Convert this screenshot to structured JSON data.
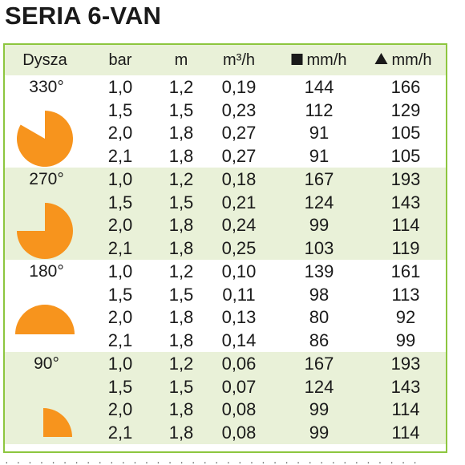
{
  "title": "SERIA 6-VAN",
  "headers": {
    "nozzle": "Dysza",
    "bar": "bar",
    "m": "m",
    "m3h": "m³/h",
    "square_mmh": "mm/h",
    "triangle_mmh": "mm/h"
  },
  "groups": [
    {
      "angle": "330°",
      "rows": [
        [
          "1,0",
          "1,2",
          "0,19",
          "144",
          "166"
        ],
        [
          "1,5",
          "1,5",
          "0,23",
          "112",
          "129"
        ],
        [
          "2,0",
          "1,8",
          "0,27",
          "91",
          "105"
        ],
        [
          "2,1",
          "1,8",
          "0,27",
          "91",
          "105"
        ]
      ]
    },
    {
      "angle": "270°",
      "rows": [
        [
          "1,0",
          "1,2",
          "0,18",
          "167",
          "193"
        ],
        [
          "1,5",
          "1,5",
          "0,21",
          "124",
          "143"
        ],
        [
          "2,0",
          "1,8",
          "0,24",
          "99",
          "114"
        ],
        [
          "2,1",
          "1,8",
          "0,25",
          "103",
          "119"
        ]
      ]
    },
    {
      "angle": "180°",
      "rows": [
        [
          "1,0",
          "1,2",
          "0,10",
          "139",
          "161"
        ],
        [
          "1,5",
          "1,5",
          "0,11",
          "98",
          "113"
        ],
        [
          "2,0",
          "1,8",
          "0,13",
          "80",
          "92"
        ],
        [
          "2,1",
          "1,8",
          "0,14",
          "86",
          "99"
        ]
      ]
    },
    {
      "angle": "90°",
      "rows": [
        [
          "1,0",
          "1,2",
          "0,06",
          "167",
          "193"
        ],
        [
          "1,5",
          "1,5",
          "0,07",
          "124",
          "143"
        ],
        [
          "2,0",
          "1,8",
          "0,08",
          "99",
          "114"
        ],
        [
          "2,1",
          "1,8",
          "0,08",
          "99",
          "114"
        ]
      ]
    }
  ],
  "colors": {
    "accent": "#f7941d",
    "border": "#8dc63f",
    "band": "#e9f1d8"
  }
}
